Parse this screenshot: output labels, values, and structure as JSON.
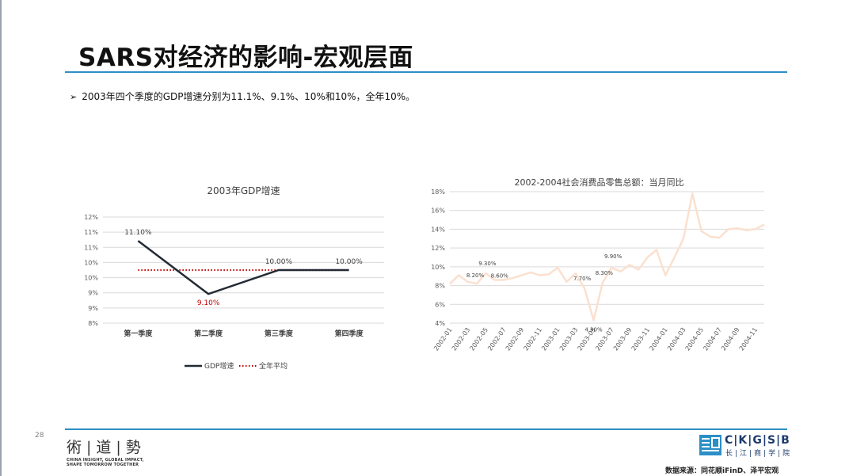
{
  "slide": {
    "title": "SARS对经济的影响-宏观层面",
    "bullet": "2003年四个季度的GDP增速分别为11.1%、9.1%、10%和10%，全年10%。",
    "page_number": "28",
    "source": "数据来源：同花顺iFinD、泽平宏观"
  },
  "logos": {
    "left": {
      "chars": "術|道|勢",
      "line1": "CHINA INSIGHT, GLOBAL IMPACT,",
      "line2": "SHAPE TOMORROW TOGETHER"
    },
    "right": {
      "text": "C|K|G|S|B",
      "subtitle": "长|江|商|学|院"
    }
  },
  "colors": {
    "accent": "#2d8fc7",
    "gdp_line": "#222a35",
    "avg_line": "#c00000",
    "retail_line": "#fbe0cf",
    "grid": "#d9d9d9"
  },
  "chart_data": [
    {
      "type": "line",
      "title": "2003年GDP增速",
      "categories": [
        "第一季度",
        "第二季度",
        "第三季度",
        "第四季度"
      ],
      "y_tick_labels": [
        "12%",
        "11%",
        "11%",
        "10%",
        "10%",
        "9%",
        "9%",
        "8%"
      ],
      "ylim": [
        8,
        12
      ],
      "series": [
        {
          "name": "GDP增速",
          "values": [
            11.1,
            9.1,
            10.0,
            10.0
          ],
          "color": "#222a35",
          "style": "solid",
          "labels": [
            "11.10%",
            "9.10%",
            "10.00%",
            "10.00%"
          ]
        },
        {
          "name": "全年平均",
          "values": [
            10.0,
            10.0,
            10.0,
            10.0
          ],
          "color": "#c00000",
          "style": "dotted"
        }
      ],
      "grid": true,
      "legend": "bottom"
    },
    {
      "type": "line",
      "title": "2002-2004社会消费品零售总额：当月同比",
      "x": [
        "2002-01",
        "2002-02",
        "2002-03",
        "2002-04",
        "2002-05",
        "2002-06",
        "2002-07",
        "2002-08",
        "2002-09",
        "2002-10",
        "2002-11",
        "2002-12",
        "2003-01",
        "2003-02",
        "2003-03",
        "2003-04",
        "2003-05",
        "2003-06",
        "2003-07",
        "2003-08",
        "2003-09",
        "2003-10",
        "2003-11",
        "2003-12",
        "2004-01",
        "2004-02",
        "2004-03",
        "2004-04",
        "2004-05",
        "2004-06",
        "2004-07",
        "2004-08",
        "2004-09",
        "2004-10",
        "2004-11",
        "2004-12"
      ],
      "x_tick_labels": [
        "2002-01",
        "2002-03",
        "2002-05",
        "2002-07",
        "2002-09",
        "2002-11",
        "2003-01",
        "2003-03",
        "2003-05",
        "2003-07",
        "2003-09",
        "2003-11",
        "2004-01",
        "2004-03",
        "2004-05",
        "2004-07",
        "2004-09",
        "2004-11"
      ],
      "y_tick_labels": [
        "18%",
        "16%",
        "14%",
        "12%",
        "10%",
        "8%",
        "6%",
        "4%"
      ],
      "ylim": [
        4,
        18
      ],
      "series": [
        {
          "values": [
            8.2,
            9.1,
            8.4,
            8.2,
            9.3,
            8.6,
            8.6,
            8.8,
            9.1,
            9.4,
            9.1,
            9.2,
            9.9,
            8.4,
            9.3,
            7.7,
            4.3,
            8.3,
            9.9,
            9.5,
            10.2,
            9.7,
            11.0,
            11.8,
            9.1,
            11.0,
            13.0,
            17.8,
            13.8,
            13.2,
            13.1,
            14.0,
            14.1,
            13.9,
            14.0,
            14.5
          ],
          "color": "#fbe0cf"
        }
      ],
      "data_labels": [
        {
          "index": 3,
          "text": "8.20%"
        },
        {
          "index": 4,
          "text": "9.30%"
        },
        {
          "index": 5,
          "text": "8.60%"
        },
        {
          "index": 15,
          "text": "7.70%"
        },
        {
          "index": 16,
          "text": "4.30%"
        },
        {
          "index": 17,
          "text": "8.30%"
        },
        {
          "index": 18,
          "text": "9.90%"
        }
      ],
      "grid": true
    }
  ]
}
